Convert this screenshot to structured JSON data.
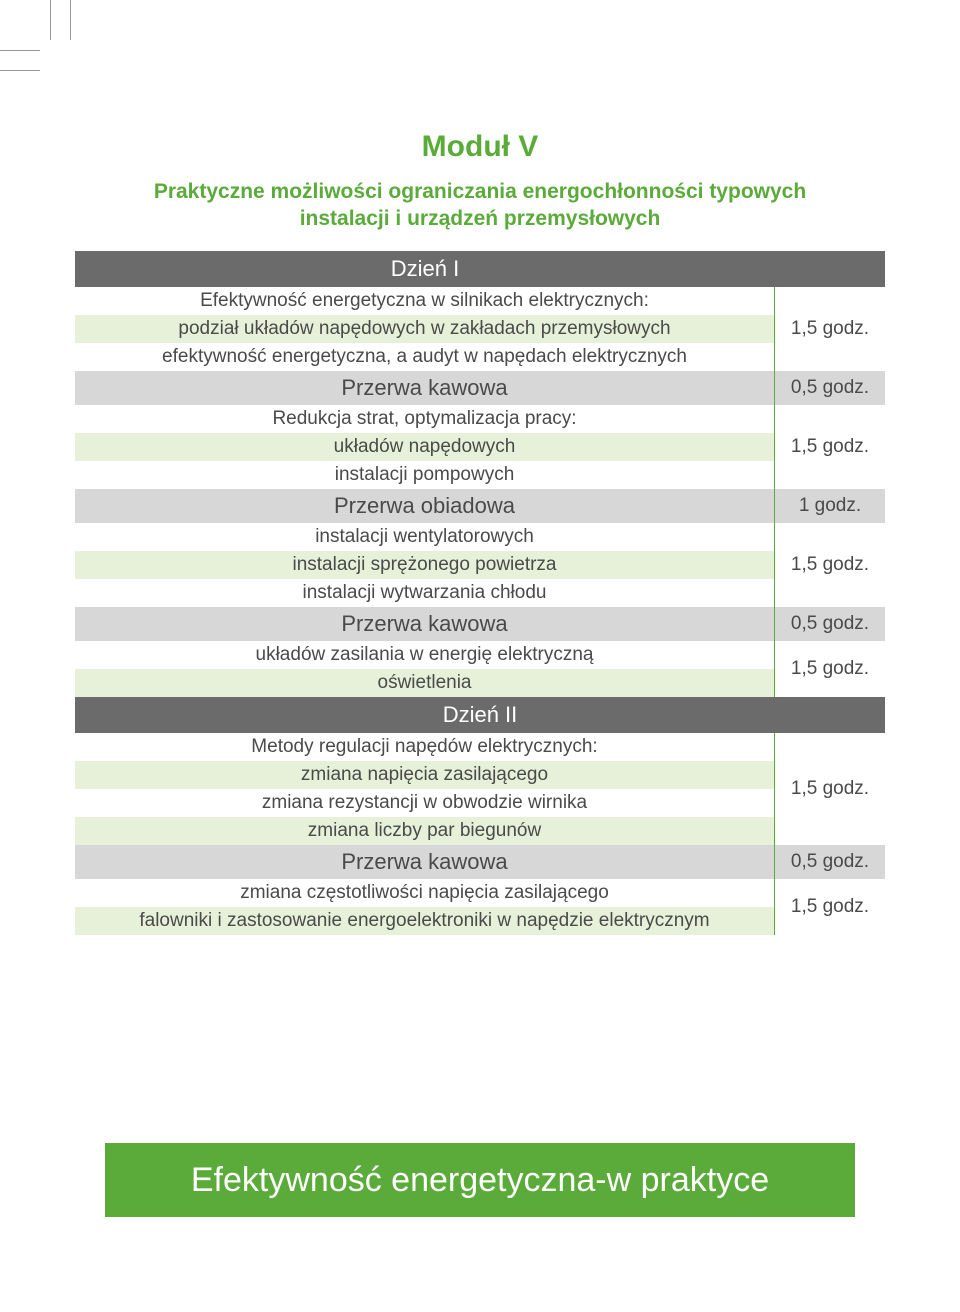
{
  "colors": {
    "accent_green": "#5aab3a",
    "pale_green": "#e7f1da",
    "header_gray": "#6b6b6b",
    "break_gray": "#d7d7d7",
    "text": "#4a4a4a",
    "white": "#ffffff"
  },
  "title": "Moduł V",
  "subtitle": "Praktyczne możliwości ograniczania energochłonności typowych instalacji i urządzeń przemysłowych",
  "footer": "Efektywność energetyczna-w praktyce",
  "day1_label": "Dzień I",
  "day2_label": "Dzień II",
  "blocks": [
    {
      "lines": [
        {
          "text": "Efektywność energetyczna w silnikach elektrycznych:",
          "bg": "white"
        },
        {
          "text": "podział układów napędowych w zakładach przemysłowych",
          "bg": "green"
        },
        {
          "text": "efektywność energetyczna, a audyt w napędach elektrycznych",
          "bg": "white"
        }
      ],
      "duration": "1,5 godz."
    },
    {
      "break": true,
      "label": "Przerwa kawowa",
      "duration": "0,5 godz."
    },
    {
      "lines": [
        {
          "text": "Redukcja strat, optymalizacja pracy:",
          "bg": "white"
        },
        {
          "text": "układów napędowych",
          "bg": "green"
        },
        {
          "text": "instalacji pompowych",
          "bg": "white"
        }
      ],
      "duration": "1,5 godz."
    },
    {
      "break": true,
      "label": "Przerwa obiadowa",
      "duration": "1 godz."
    },
    {
      "lines": [
        {
          "text": "instalacji wentylatorowych",
          "bg": "white"
        },
        {
          "text": "instalacji sprężonego powietrza",
          "bg": "green"
        },
        {
          "text": "instalacji wytwarzania chłodu",
          "bg": "white"
        }
      ],
      "duration": "1,5 godz."
    },
    {
      "break": true,
      "label": "Przerwa kawowa",
      "duration": "0,5 godz."
    },
    {
      "lines": [
        {
          "text": "układów zasilania w energię elektryczną",
          "bg": "white"
        },
        {
          "text": "oświetlenia",
          "bg": "green"
        }
      ],
      "duration": "1,5 godz."
    }
  ],
  "blocks2": [
    {
      "lines": [
        {
          "text": "Metody regulacji napędów elektrycznych:",
          "bg": "white"
        },
        {
          "text": "zmiana napięcia zasilającego",
          "bg": "green"
        },
        {
          "text": "zmiana rezystancji w obwodzie wirnika",
          "bg": "white"
        },
        {
          "text": "zmiana liczby par biegunów",
          "bg": "green"
        }
      ],
      "duration": "1,5 godz."
    },
    {
      "break": true,
      "label": "Przerwa kawowa",
      "duration": "0,5 godz."
    },
    {
      "lines": [
        {
          "text": "zmiana częstotliwości napięcia zasilającego",
          "bg": "white"
        },
        {
          "text": "falowniki i zastosowanie energoelektroniki w napędzie elektrycznym",
          "bg": "green"
        }
      ],
      "duration": "1,5 godz."
    }
  ]
}
